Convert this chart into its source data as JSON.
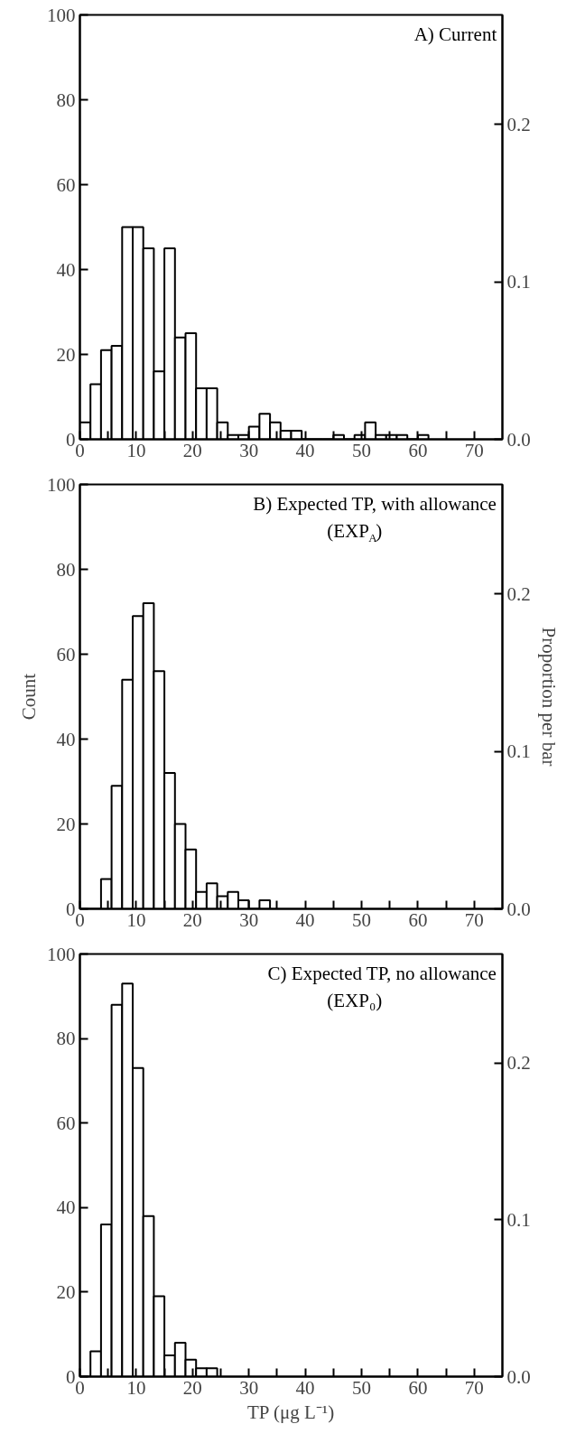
{
  "chart_data": [
    {
      "type": "histogram",
      "title": "A) Current",
      "bins": [
        0,
        1.875,
        3.75,
        5.625,
        7.5,
        9.375,
        11.25,
        13.125,
        15,
        16.875,
        18.75,
        20.625,
        22.5,
        24.375,
        26.25,
        28.125,
        30,
        31.875,
        33.75,
        35.625,
        37.5,
        39.375,
        41.25,
        43.125,
        45,
        46.875,
        48.75,
        50.625,
        52.5,
        54.375,
        56.25,
        58.125,
        60,
        61.875
      ],
      "values": [
        4,
        13,
        21,
        22,
        50,
        50,
        45,
        16,
        45,
        24,
        25,
        12,
        12,
        4,
        1,
        1,
        3,
        6,
        4,
        2,
        2,
        0,
        0,
        0,
        1,
        0,
        1,
        4,
        1,
        1,
        1,
        0,
        1
      ],
      "color": "#ffffff",
      "xlim": [
        0,
        75
      ],
      "ylim": [
        0,
        100
      ],
      "y2lim": [
        0,
        0.2695
      ],
      "xticks": [
        0,
        {
          "value": 5,
          "label": null
        },
        10,
        {
          "value": 15,
          "label": null
        },
        20,
        {
          "value": 25,
          "label": null
        },
        30,
        {
          "value": 35,
          "label": null
        },
        40,
        {
          "value": 45,
          "label": null
        },
        50,
        {
          "value": 55,
          "label": null
        },
        60,
        {
          "value": 65,
          "label": null
        },
        70
      ],
      "yticks": [
        0,
        20,
        40,
        60,
        80,
        100
      ],
      "y2ticks": [
        {
          "value": 0,
          "label": "0.0"
        },
        {
          "value": 0.1,
          "label": "0.1"
        },
        {
          "value": 0.2,
          "label": "0.2"
        }
      ],
      "grid": false
    },
    {
      "type": "histogram",
      "title": "B) Expected TP, with allowance",
      "subtitle": "(EXP$_{A}$)",
      "ylabel": "Count",
      "y2label": "Proportion per bar",
      "bins": [
        0,
        1.875,
        3.75,
        5.625,
        7.5,
        9.375,
        11.25,
        13.125,
        15,
        16.875,
        18.75,
        20.625,
        22.5,
        24.375,
        26.25,
        28.125,
        30,
        31.875,
        33.75
      ],
      "values": [
        0,
        0,
        7,
        29,
        54,
        69,
        72,
        56,
        32,
        20,
        14,
        4,
        6,
        3,
        4,
        2,
        0,
        2
      ],
      "color": "#ffffff",
      "xlim": [
        0,
        75
      ],
      "ylim": [
        0,
        100
      ],
      "y2lim": [
        0,
        0.2695
      ],
      "xticks": [
        0,
        {
          "value": 5,
          "label": null
        },
        10,
        {
          "value": 15,
          "label": null
        },
        20,
        {
          "value": 25,
          "label": null
        },
        30,
        {
          "value": 35,
          "label": null
        },
        40,
        {
          "value": 45,
          "label": null
        },
        50,
        {
          "value": 55,
          "label": null
        },
        60,
        {
          "value": 65,
          "label": null
        },
        70
      ],
      "yticks": [
        0,
        20,
        40,
        60,
        80,
        100
      ],
      "y2ticks": [
        {
          "value": 0,
          "label": "0.0"
        },
        {
          "value": 0.1,
          "label": "0.1"
        },
        {
          "value": 0.2,
          "label": "0.2"
        }
      ],
      "grid": false
    },
    {
      "type": "histogram",
      "title": "C) Expected TP, no allowance",
      "subtitle": "(EXP₀)",
      "xlabel": "TP (μg L⁻¹)",
      "bins": [
        0,
        1.875,
        3.75,
        5.625,
        7.5,
        9.375,
        11.25,
        13.125,
        15,
        16.875,
        18.75,
        20.625,
        22.5,
        24.375
      ],
      "values": [
        0,
        6,
        36,
        88,
        93,
        73,
        38,
        19,
        5,
        8,
        4,
        2,
        2
      ],
      "color": "#ffffff",
      "xlim": [
        0,
        75
      ],
      "ylim": [
        0,
        100
      ],
      "y2lim": [
        0,
        0.2695
      ],
      "xticks": [
        0,
        {
          "value": 5,
          "label": null
        },
        10,
        {
          "value": 15,
          "label": null
        },
        20,
        {
          "value": 25,
          "label": null
        },
        30,
        {
          "value": 35,
          "label": null
        },
        40,
        {
          "value": 45,
          "label": null
        },
        50,
        {
          "value": 55,
          "label": null
        },
        60,
        {
          "value": 65,
          "label": null
        },
        70
      ],
      "yticks": [
        0,
        20,
        40,
        60,
        80,
        100
      ],
      "y2ticks": [
        {
          "value": 0,
          "label": "0.0"
        },
        {
          "value": 0.1,
          "label": "0.1"
        },
        {
          "value": 0.2,
          "label": "0.2"
        }
      ],
      "grid": false
    }
  ]
}
